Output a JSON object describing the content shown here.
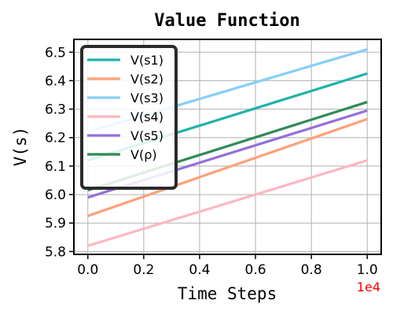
{
  "chart_data": {
    "type": "line",
    "title": "Value Function",
    "xlabel": "Time Steps",
    "ylabel": "V(s)",
    "x_offset_label": "1e4",
    "x": [
      0.0,
      1.0
    ],
    "xlim": [
      -0.05,
      1.05
    ],
    "ylim": [
      5.79,
      6.545
    ],
    "x_ticks": [
      0.0,
      0.2,
      0.4,
      0.6,
      0.8,
      1.0
    ],
    "x_tick_labels": [
      "0.0",
      "0.2",
      "0.4",
      "0.6",
      "0.8",
      "1.0"
    ],
    "y_ticks": [
      5.8,
      5.9,
      6.0,
      6.1,
      6.2,
      6.3,
      6.4,
      6.5
    ],
    "y_tick_labels": [
      "5.8",
      "5.9",
      "6.0",
      "6.1",
      "6.2",
      "6.3",
      "6.4",
      "6.5"
    ],
    "grid": true,
    "legend_position": "top-left",
    "series": [
      {
        "name": "V(s1)",
        "color": "#20b2aa",
        "values": [
          6.12,
          6.425
        ]
      },
      {
        "name": "V(s2)",
        "color": "#ffa07a",
        "values": [
          5.925,
          6.265
        ]
      },
      {
        "name": "V(s3)",
        "color": "#87cefa",
        "values": [
          6.22,
          6.51
        ]
      },
      {
        "name": "V(s4)",
        "color": "#ffb6c1",
        "values": [
          5.82,
          6.12
        ]
      },
      {
        "name": "V(s5)",
        "color": "#9370db",
        "values": [
          5.99,
          6.295
        ]
      },
      {
        "name": "V(ρ)",
        "color": "#2e8b57",
        "values": [
          6.015,
          6.325
        ]
      }
    ]
  }
}
